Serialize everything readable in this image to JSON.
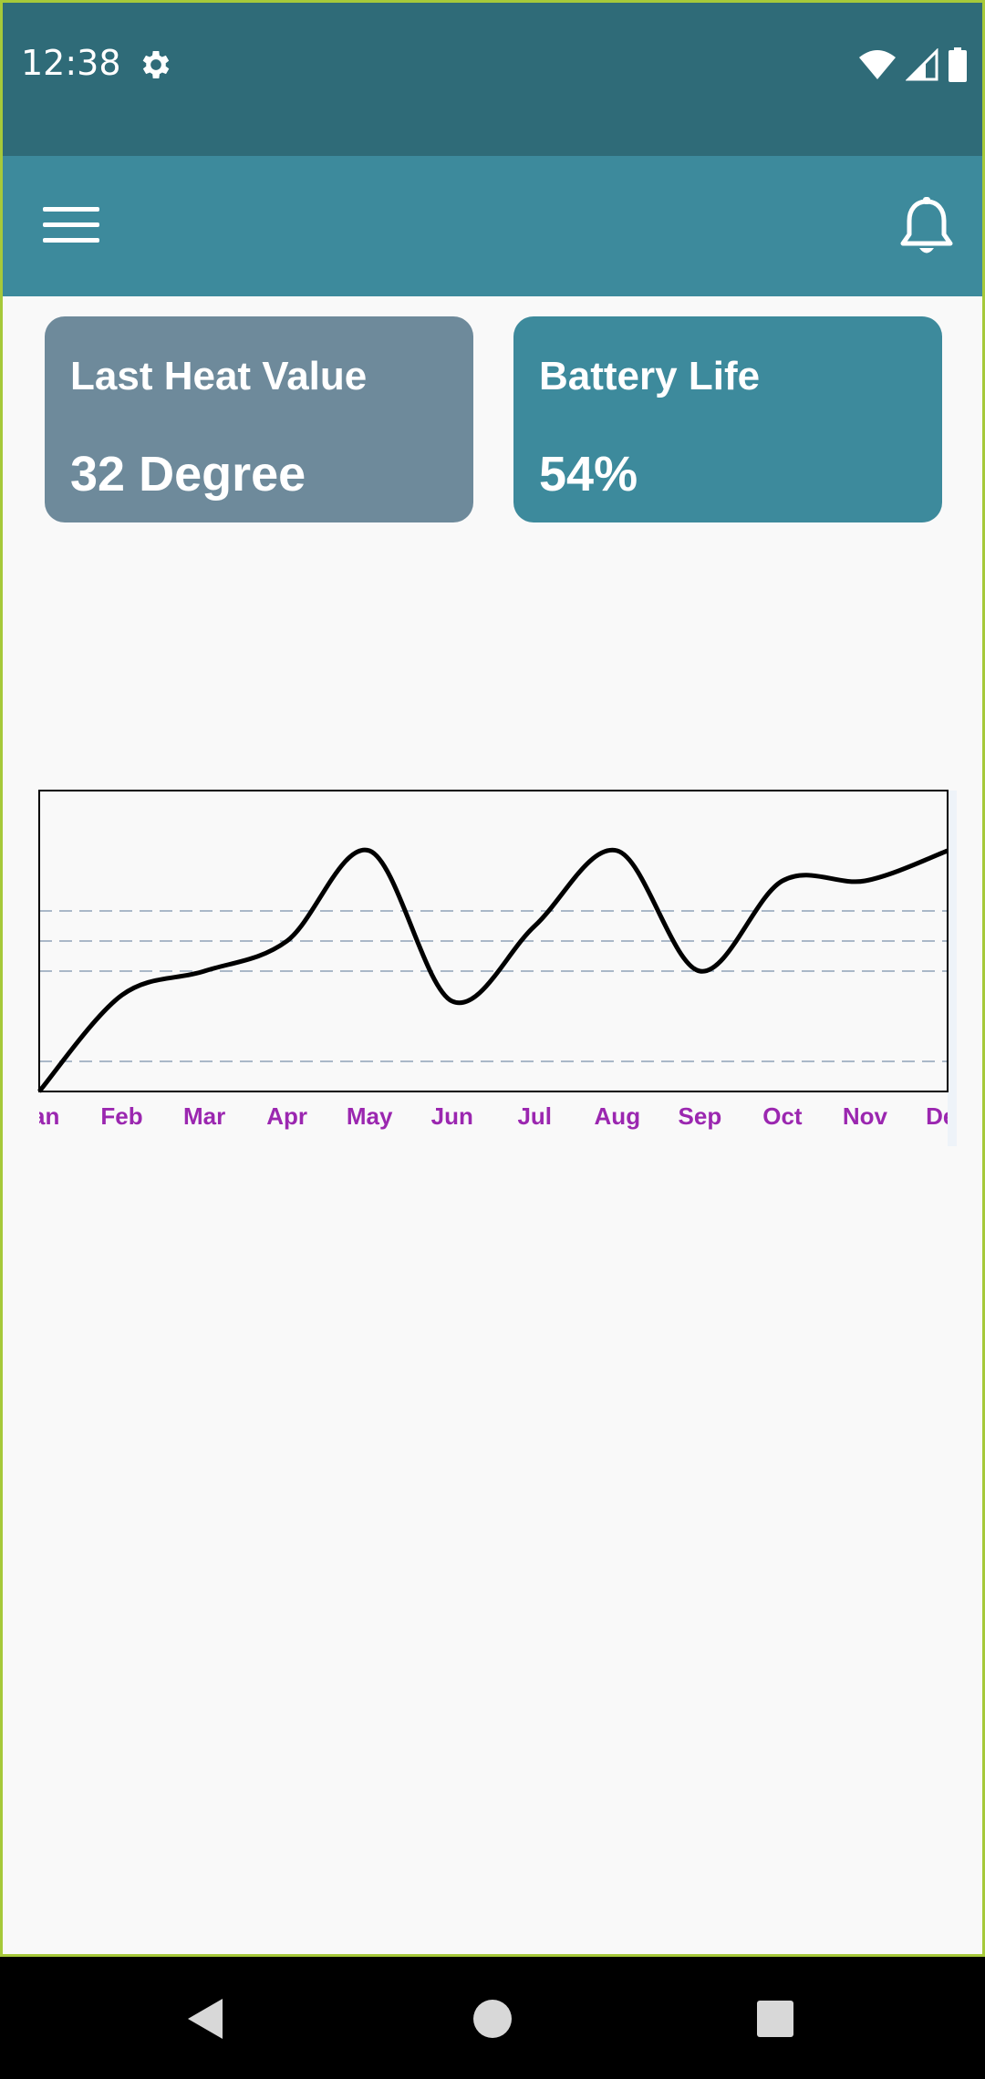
{
  "status_bar": {
    "time": "12:38",
    "icons": [
      "gear-icon",
      "wifi-icon",
      "signal-icon",
      "battery-icon"
    ]
  },
  "app_bar": {
    "menu_icon": "hamburger-menu-icon",
    "notification_icon": "bell-icon"
  },
  "cards": {
    "heat": {
      "title": "Last Heat Value",
      "value": "32 Degree"
    },
    "battery": {
      "title": "Battery Life",
      "value": "54%"
    }
  },
  "colors": {
    "status_bar": "#2f6b78",
    "app_bar": "#3d8a9c",
    "card_heat": "#6e8a9b",
    "card_battery": "#3d8a9c",
    "month_label": "#9b27b0",
    "grid": "#8fa3b8"
  },
  "chart_data": {
    "type": "line",
    "categories": [
      "Jan",
      "Feb",
      "Mar",
      "Apr",
      "May",
      "Jun",
      "Jul",
      "Aug",
      "Sep",
      "Oct",
      "Nov",
      "Dec"
    ],
    "values": [
      0,
      3.2,
      4.0,
      5.0,
      8.0,
      3.0,
      5.5,
      8.0,
      4.0,
      7.0,
      7.0,
      8.0
    ],
    "ylim": [
      0,
      10
    ],
    "gridlines_y": [
      1,
      4,
      5,
      6
    ],
    "grid": "dashed horizontal",
    "title": "",
    "xlabel": "",
    "ylabel": ""
  },
  "nav_bar": {
    "back_icon": "back-triangle-icon",
    "home_icon": "home-circle-icon",
    "recents_icon": "recents-square-icon"
  }
}
